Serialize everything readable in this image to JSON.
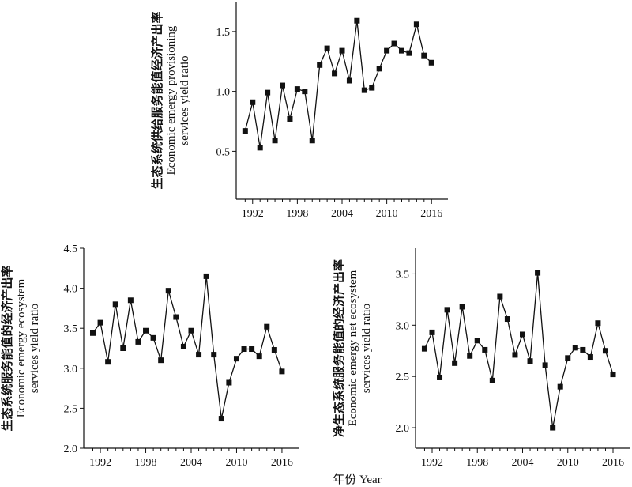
{
  "figure": {
    "x_title": "年份 Year"
  },
  "chart_data": [
    {
      "type": "line",
      "ylabel_lines": [
        "生态系统供给服务能值经济产出率",
        "Economic emergy provisioning",
        "services yield ratio"
      ],
      "xlabel": "",
      "x_ticks": [
        1992,
        1998,
        2004,
        2010,
        2016
      ],
      "y_ticks": [
        0.5,
        1.0,
        1.5
      ],
      "y_tick_labels": [
        "0.5",
        "1.0",
        "1.5"
      ],
      "xlim": [
        1989.8,
        2018.2
      ],
      "ylim": [
        0.1,
        1.75
      ],
      "x": [
        1991,
        1992,
        1993,
        1994,
        1995,
        1996,
        1997,
        1998,
        1999,
        2000,
        2001,
        2002,
        2003,
        2004,
        2005,
        2006,
        2007,
        2008,
        2009,
        2010,
        2011,
        2012,
        2013,
        2014,
        2015,
        2016
      ],
      "series": [
        {
          "values": [
            0.67,
            0.91,
            0.53,
            0.99,
            0.59,
            1.05,
            0.77,
            1.02,
            1.0,
            0.59,
            1.22,
            1.36,
            1.15,
            1.34,
            1.09,
            1.59,
            1.01,
            1.03,
            1.19,
            1.34,
            1.4,
            1.34,
            1.32,
            1.56,
            1.3,
            1.24
          ]
        }
      ]
    },
    {
      "type": "line",
      "ylabel_lines": [
        "生态系统服务能值的经济产出率",
        "Economic emergy ecosystem",
        "services yield ratio"
      ],
      "xlabel": "",
      "x_ticks": [
        1992,
        1998,
        2004,
        2010,
        2016
      ],
      "y_ticks": [
        2.0,
        2.5,
        3.0,
        3.5,
        4.0,
        4.5
      ],
      "y_tick_labels": [
        "2.0",
        "2.5",
        "3.0",
        "3.5",
        "4.0",
        "4.5"
      ],
      "xlim": [
        1989.8,
        2018.2
      ],
      "ylim": [
        2.0,
        4.5
      ],
      "x": [
        1991,
        1992,
        1993,
        1994,
        1995,
        1996,
        1997,
        1998,
        1999,
        2000,
        2001,
        2002,
        2003,
        2004,
        2005,
        2006,
        2007,
        2008,
        2009,
        2010,
        2011,
        2012,
        2013,
        2014,
        2015,
        2016
      ],
      "series": [
        {
          "values": [
            3.44,
            3.57,
            3.08,
            3.8,
            3.25,
            3.85,
            3.33,
            3.47,
            3.38,
            3.1,
            3.97,
            3.64,
            3.27,
            3.47,
            3.17,
            4.15,
            3.17,
            2.37,
            2.82,
            3.12,
            3.24,
            3.24,
            3.15,
            3.52,
            3.23,
            2.96
          ]
        }
      ]
    },
    {
      "type": "line",
      "ylabel_lines": [
        "净生态系统服务能值的经济产出率",
        "Economic emergy net ecosystem",
        "services yield ratio"
      ],
      "xlabel": "",
      "x_ticks": [
        1992,
        1998,
        2004,
        2010,
        2016
      ],
      "y_ticks": [
        2.0,
        2.5,
        3.0,
        3.5
      ],
      "y_tick_labels": [
        "2.0",
        "2.5",
        "3.0",
        "3.5"
      ],
      "xlim": [
        1989.8,
        2018.2
      ],
      "ylim": [
        1.8,
        3.75
      ],
      "x": [
        1991,
        1992,
        1993,
        1994,
        1995,
        1996,
        1997,
        1998,
        1999,
        2000,
        2001,
        2002,
        2003,
        2004,
        2005,
        2006,
        2007,
        2008,
        2009,
        2010,
        2011,
        2012,
        2013,
        2014,
        2015,
        2016
      ],
      "series": [
        {
          "values": [
            2.77,
            2.93,
            2.49,
            3.15,
            2.63,
            3.18,
            2.7,
            2.85,
            2.76,
            2.46,
            3.28,
            3.06,
            2.71,
            2.91,
            2.65,
            3.51,
            2.61,
            2.0,
            2.4,
            2.68,
            2.78,
            2.76,
            2.69,
            3.02,
            2.75,
            2.52
          ]
        }
      ]
    }
  ]
}
